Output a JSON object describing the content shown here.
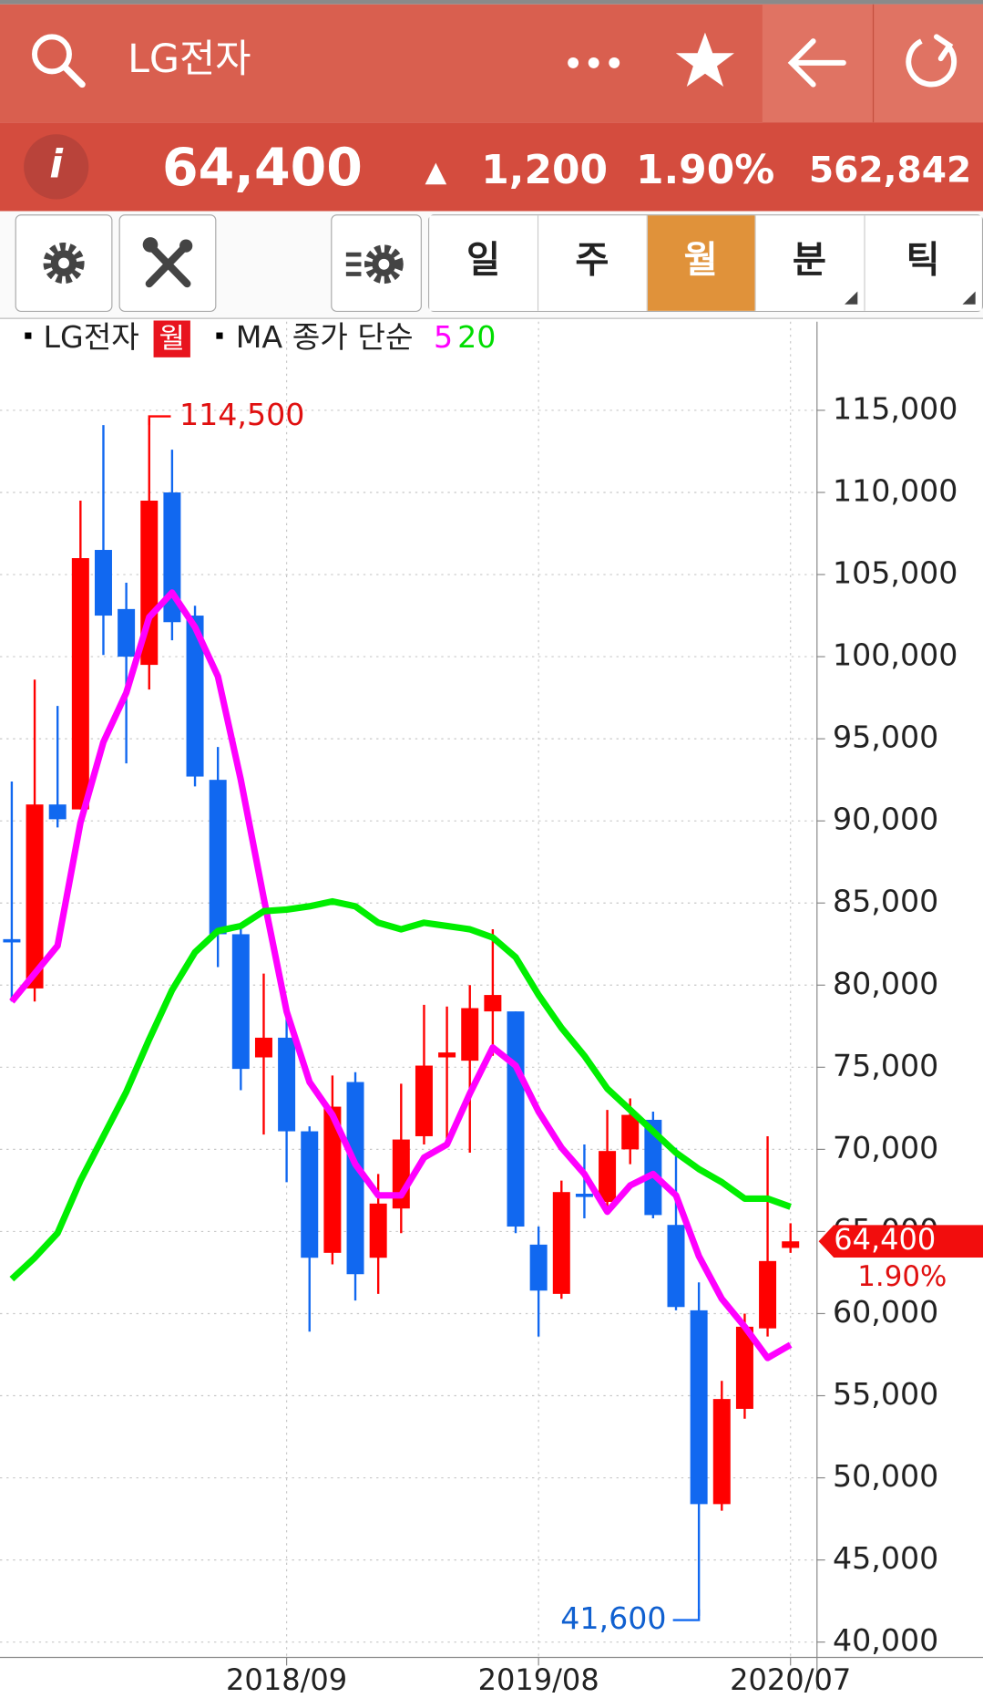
{
  "header": {
    "title": "LG전자"
  },
  "quote": {
    "price": "64,400",
    "arrow": "▲",
    "change": "1,200",
    "change_pct": "1.90%",
    "volume": "562,842",
    "info": "i"
  },
  "toolbar": {
    "tabs": [
      "일",
      "주",
      "월",
      "분",
      "틱"
    ],
    "active": 2
  },
  "chart_data": {
    "type": "candlestick",
    "period": "월",
    "ma_label": "MA 종가 단순",
    "categories": [
      null,
      null,
      null,
      null,
      null,
      null,
      null,
      null,
      null,
      null,
      null,
      null,
      "2018/09",
      null,
      null,
      null,
      null,
      null,
      null,
      null,
      null,
      null,
      null,
      "2019/08",
      null,
      null,
      null,
      null,
      null,
      null,
      null,
      null,
      null,
      null,
      "2020/07"
    ],
    "series": [
      {
        "name": "LG전자",
        "up_color": "#ff0000",
        "down_color": "#1168f0",
        "open": [
          82800,
          79800,
          91000,
          90700,
          106500,
          102900,
          99500,
          110000,
          102500,
          92500,
          83100,
          75600,
          76800,
          71100,
          63700,
          74100,
          63400,
          66400,
          70800,
          75600,
          75400,
          78400,
          78400,
          64200,
          61200,
          67300,
          66800,
          70000,
          71800,
          65400,
          60200,
          48400,
          54200,
          59100,
          64000
        ],
        "high": [
          92400,
          98600,
          97000,
          109500,
          114100,
          104500,
          114500,
          112600,
          103100,
          94500,
          83400,
          80700,
          78400,
          71400,
          74500,
          74700,
          68500,
          74000,
          78800,
          78700,
          80000,
          83400,
          78400,
          65300,
          68100,
          70300,
          72400,
          73100,
          72300,
          70100,
          61900,
          55900,
          60000,
          70800,
          65500
        ],
        "low": [
          79000,
          79000,
          89600,
          90700,
          100100,
          93500,
          98000,
          101000,
          92100,
          81100,
          73600,
          70900,
          68000,
          58900,
          63000,
          60800,
          61200,
          64900,
          70300,
          70500,
          69800,
          75700,
          64900,
          58600,
          60900,
          65800,
          66400,
          69100,
          65800,
          60200,
          41600,
          48000,
          53600,
          58600,
          63700
        ],
        "close": [
          82600,
          91000,
          90100,
          106000,
          102500,
          100000,
          109500,
          102100,
          92700,
          83100,
          74900,
          76800,
          71100,
          63400,
          72600,
          62400,
          66700,
          70600,
          75100,
          75900,
          78600,
          79400,
          65300,
          61400,
          67400,
          67100,
          69900,
          72100,
          66000,
          60400,
          48400,
          54800,
          59200,
          63200,
          64400
        ]
      },
      {
        "name": "5",
        "color": "#ff00ff",
        "values": [
          79000,
          80700,
          82400,
          89900,
          94800,
          97800,
          102400,
          103900,
          101800,
          98800,
          92500,
          85300,
          78400,
          74100,
          72100,
          69100,
          67200,
          67200,
          69500,
          70300,
          73400,
          76200,
          75100,
          72300,
          70100,
          68500,
          66200,
          67800,
          68500,
          67200,
          63500,
          60900,
          59200,
          57300,
          58100
        ]
      },
      {
        "name": "20",
        "color": "#00ee00",
        "values": [
          62100,
          63400,
          64900,
          68100,
          70800,
          73500,
          76700,
          79700,
          82000,
          83300,
          83600,
          84500,
          84600,
          84800,
          85100,
          84800,
          83800,
          83400,
          83800,
          83600,
          83400,
          82900,
          81700,
          79400,
          77400,
          75700,
          73700,
          72400,
          71100,
          69800,
          68800,
          68000,
          67000,
          67000,
          66500
        ]
      }
    ],
    "ylim": [
      39100,
      120400
    ],
    "yticks": [
      {
        "value": 40000,
        "label": "40,000"
      },
      {
        "value": 45000,
        "label": "45,000"
      },
      {
        "value": 50000,
        "label": "50,000"
      },
      {
        "value": 55000,
        "label": "55,000"
      },
      {
        "value": 60000,
        "label": "60,000"
      },
      {
        "value": 65000,
        "label": "65,000"
      },
      {
        "value": 70000,
        "label": "70,000"
      },
      {
        "value": 75000,
        "label": "75,000"
      },
      {
        "value": 80000,
        "label": "80,000"
      },
      {
        "value": 85000,
        "label": "85,000"
      },
      {
        "value": 90000,
        "label": "90,000"
      },
      {
        "value": 95000,
        "label": "95,000"
      },
      {
        "value": 100000,
        "label": "100,000"
      },
      {
        "value": 105000,
        "label": "105,000"
      },
      {
        "value": 110000,
        "label": "110,000"
      },
      {
        "value": 115000,
        "label": "115,000"
      }
    ],
    "grid": true,
    "high_label": {
      "value": 114500,
      "label": "114,500"
    },
    "low_label": {
      "value": 41600,
      "label": "41,600"
    },
    "last_label": {
      "value": 64400,
      "label": "64,400"
    },
    "last_change": "1.90%"
  }
}
